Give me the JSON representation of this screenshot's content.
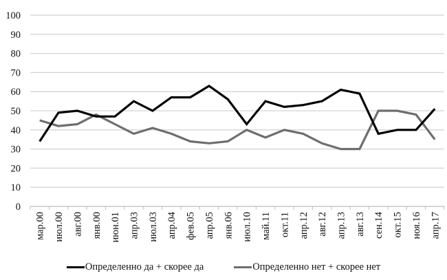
{
  "chart_data": {
    "type": "line",
    "title": "",
    "xlabel": "",
    "ylabel": "",
    "ylim": [
      0,
      100
    ],
    "yticks": [
      0,
      10,
      20,
      30,
      40,
      50,
      60,
      70,
      80,
      90,
      100
    ],
    "grid": true,
    "legend_position": "bottom",
    "categories": [
      "мар.00",
      "июл.00",
      "авг.00",
      "янв.00",
      "июн.01",
      "апр.03",
      "июл.03",
      "апр.04",
      "фев.05",
      "апр.05",
      "янв.06",
      "июл.10",
      "май.11",
      "окт.11",
      "апр.12",
      "авг.12",
      "апр.13",
      "авг.13",
      "сен.14",
      "окт.15",
      "ноя.16",
      "апр.17"
    ],
    "series": [
      {
        "name": "Определенно да + скорее да",
        "color": "#000000",
        "values": [
          34,
          49,
          50,
          47,
          47,
          55,
          50,
          57,
          57,
          63,
          56,
          43,
          55,
          52,
          53,
          55,
          61,
          59,
          38,
          40,
          40,
          51
        ]
      },
      {
        "name": "Определенно нет + скорее нет",
        "color": "#6e6e6e",
        "values": [
          45,
          42,
          43,
          48,
          43,
          38,
          41,
          38,
          34,
          33,
          34,
          40,
          36,
          40,
          38,
          33,
          30,
          30,
          50,
          50,
          48,
          35
        ]
      }
    ]
  },
  "legend": {
    "items": [
      {
        "label": "Определенно да + скорее да",
        "color": "#000000"
      },
      {
        "label": "Определенно нет + скорее нет",
        "color": "#6e6e6e"
      }
    ]
  }
}
